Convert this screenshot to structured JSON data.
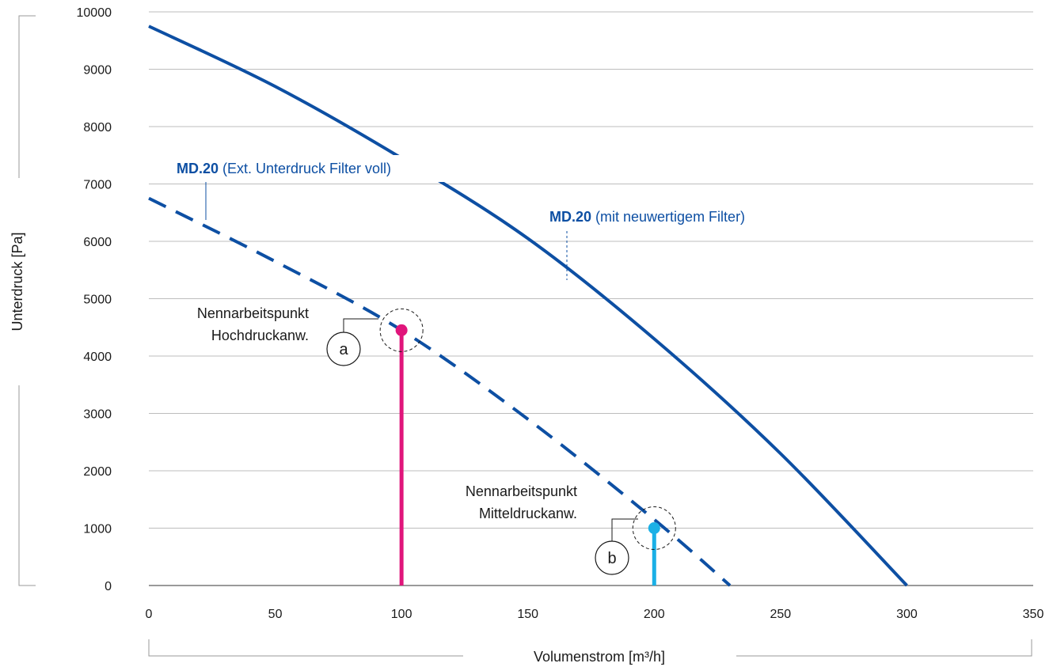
{
  "chart_data": {
    "type": "line",
    "xlabel": "Volumenstrom [m³/h]",
    "ylabel": "Unterdruck [Pa]",
    "xlim": [
      0,
      350
    ],
    "ylim": [
      0,
      10000
    ],
    "x_ticks": [
      0,
      50,
      100,
      150,
      200,
      250,
      300,
      350
    ],
    "y_ticks": [
      0,
      1000,
      2000,
      3000,
      4000,
      5000,
      6000,
      7000,
      8000,
      9000,
      10000
    ],
    "x_tick_labels": [
      "0",
      "50",
      "100",
      "150",
      "200",
      "250",
      "300",
      "350"
    ],
    "y_tick_labels": [
      "0",
      "1000",
      "2000",
      "3000",
      "4000",
      "5000",
      "6000",
      "7000",
      "8000",
      "9000",
      "10000"
    ],
    "grid": "horizontal",
    "series": [
      {
        "name_bold": "MD.20",
        "name_rest": " (mit neuwertigem Filter)",
        "style": "solid",
        "color": "#0d4fa3",
        "x": [
          0,
          50,
          100,
          150,
          200,
          250,
          300
        ],
        "y": [
          9750,
          8700,
          7450,
          6050,
          4300,
          2300,
          0
        ]
      },
      {
        "name_bold": "MD.20",
        "name_rest": " (Ext. Unterdruck Filter voll)",
        "style": "dashed",
        "color": "#0d4fa3",
        "x": [
          0,
          50,
          100,
          150,
          200,
          230
        ],
        "y": [
          6750,
          5650,
          4450,
          2900,
          1150,
          0
        ]
      }
    ],
    "operating_points": [
      {
        "letter": "a",
        "label_line1": "Nennarbeitspunkt",
        "label_line2": "Hochdruckanw.",
        "x": 100,
        "y": 4450,
        "color": "#e0157b"
      },
      {
        "letter": "b",
        "label_line1": "Nennarbeitspunkt",
        "label_line2": "Mitteldruckanw.",
        "x": 200,
        "y": 1000,
        "color": "#1bb0e6"
      }
    ]
  }
}
